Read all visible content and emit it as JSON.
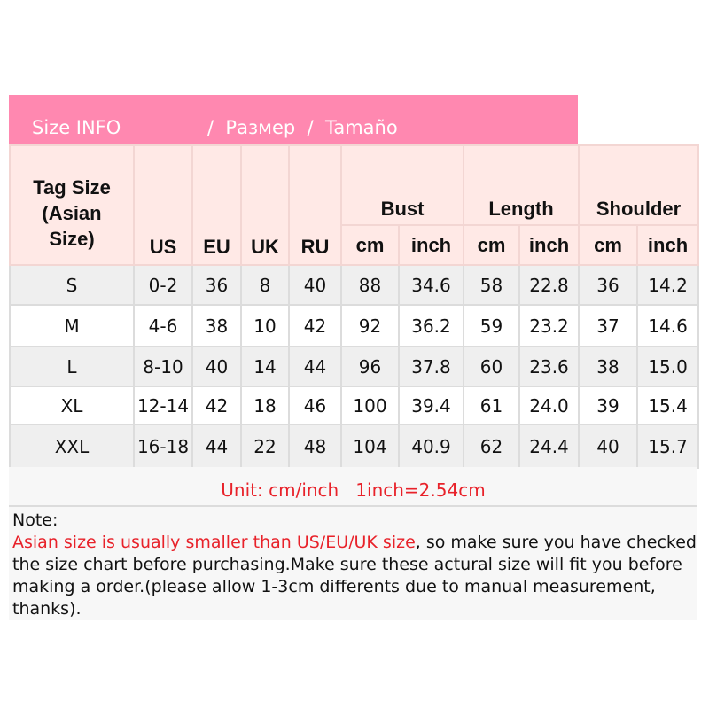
{
  "title": {
    "part1": "Size INFO",
    "part2": "/  Размер  /  Tamaño",
    "bg_color": "#ff88b0"
  },
  "headers": {
    "tag_size": "Tag Size (Asian Size)",
    "us": "US",
    "eu": "EU",
    "uk": "UK",
    "ru": "RU",
    "bust": "Bust",
    "length": "Length",
    "shoulder": "Shoulder",
    "cm": "cm",
    "inch": "inch"
  },
  "rows": [
    [
      "S",
      "0-2",
      "36",
      "8",
      "40",
      "88",
      "34.6",
      "58",
      "22.8",
      "36",
      "14.2"
    ],
    [
      "M",
      "4-6",
      "38",
      "10",
      "42",
      "92",
      "36.2",
      "59",
      "23.2",
      "37",
      "14.6"
    ],
    [
      "L",
      "8-10",
      "40",
      "14",
      "44",
      "96",
      "37.8",
      "60",
      "23.6",
      "38",
      "15.0"
    ],
    [
      "XL",
      "12-14",
      "42",
      "18",
      "46",
      "100",
      "39.4",
      "61",
      "24.0",
      "39",
      "15.4"
    ],
    [
      "XXL",
      "16-18",
      "44",
      "22",
      "48",
      "104",
      "40.9",
      "62",
      "24.4",
      "40",
      "15.7"
    ]
  ],
  "unit": "Unit: cm/inch   1inch=2.54cm",
  "note": {
    "label": "Note:",
    "highlight": "Asian size is usually smaller than US/EU/UK size",
    "rest": ", so make sure you have checked the size chart before purchasing.Make sure these actural size will fit you before making a order.(please allow 1-3cm differents due to manual measurement, thanks).",
    "highlight_color": "#e8222a"
  }
}
